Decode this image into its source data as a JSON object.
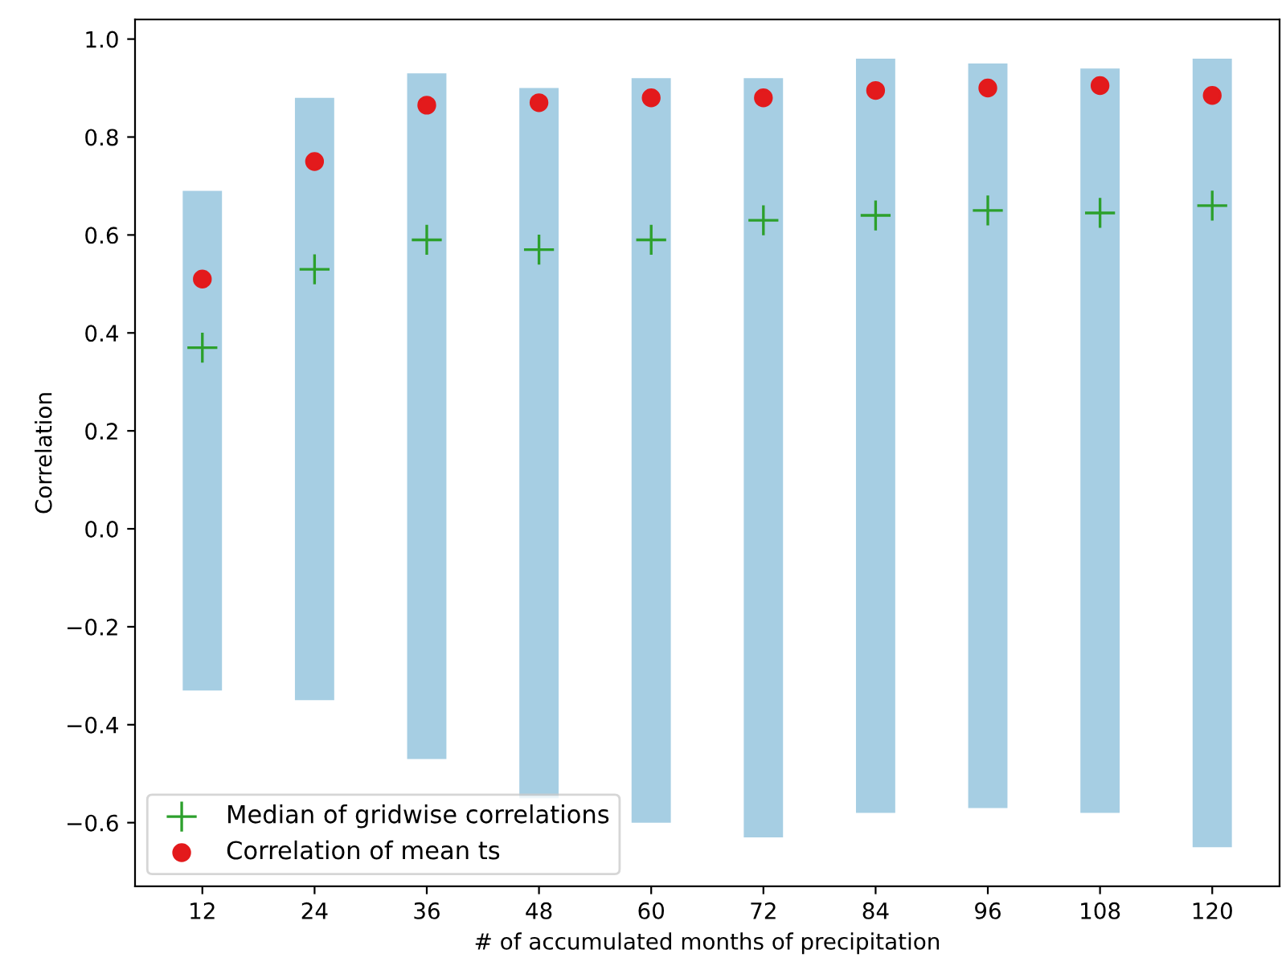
{
  "chart_data": {
    "type": "bar",
    "xlabel": "# of accumulated months of precipitation",
    "ylabel": "Correlation",
    "categories": [
      "12",
      "24",
      "36",
      "48",
      "60",
      "72",
      "84",
      "96",
      "108",
      "120"
    ],
    "series": [
      {
        "color": "#a6cee3",
        "base": [
          -0.33,
          -0.35,
          -0.47,
          -0.55,
          -0.6,
          -0.63,
          -0.58,
          -0.57,
          -0.58,
          -0.65
        ],
        "values": [
          1.02,
          1.23,
          1.4,
          1.45,
          1.52,
          1.55,
          1.54,
          1.52,
          1.52,
          1.61
        ]
      },
      {
        "type": "scatter",
        "name": "Median of gridwise correlations",
        "color": "#2ca02c",
        "marker": "cross",
        "x": [
          "12",
          "24",
          "36",
          "48",
          "60",
          "72",
          "84",
          "96",
          "108",
          "120"
        ],
        "values": [
          0.37,
          0.53,
          0.59,
          0.57,
          0.59,
          0.63,
          0.64,
          0.65,
          0.645,
          0.66
        ]
      },
      {
        "type": "scatter",
        "name": "Correlation of mean ts",
        "color": "#e31a1c",
        "marker": "circle",
        "x": [
          "12",
          "24",
          "36",
          "48",
          "60",
          "72",
          "84",
          "96",
          "108",
          "120"
        ],
        "values": [
          0.51,
          0.75,
          0.865,
          0.87,
          0.88,
          0.88,
          0.895,
          0.9,
          0.905,
          0.885
        ]
      }
    ],
    "ylim": [
      -0.73,
      1.04
    ],
    "yticks": [
      {
        "value": -0.6,
        "label": "−0.6"
      },
      {
        "value": -0.4,
        "label": "−0.4"
      },
      {
        "value": -0.2,
        "label": "−0.2"
      },
      {
        "value": 0.0,
        "label": "0.0"
      },
      {
        "value": 0.2,
        "label": "0.2"
      },
      {
        "value": 0.4,
        "label": "0.4"
      },
      {
        "value": 0.6,
        "label": "0.6"
      },
      {
        "value": 0.8,
        "label": "0.8"
      },
      {
        "value": 1.0,
        "label": "1.0"
      }
    ],
    "legend": "bottom left",
    "grid": false
  }
}
